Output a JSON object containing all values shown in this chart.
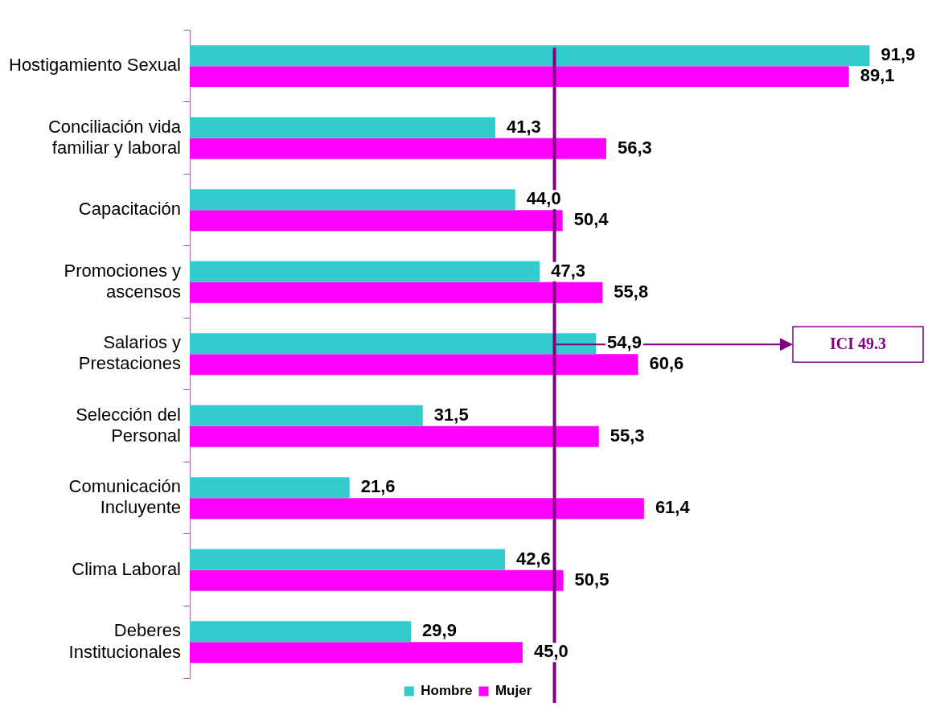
{
  "chart_data": {
    "type": "bar",
    "orientation": "horizontal",
    "categories": [
      "Hostigamiento Sexual",
      "Conciliación vida\nfamiliar y laboral",
      "Capacitación",
      "Promociones y\nascensos",
      "Salarios y\nPrestaciones",
      "Selección del\nPersonal",
      "Comunicación\nIncluyente",
      "Clima Laboral",
      "Deberes\nInstitucionales"
    ],
    "series": [
      {
        "name": "Hombre",
        "color": "#33cccc",
        "values": [
          91.9,
          41.3,
          44.0,
          47.3,
          54.9,
          31.5,
          21.6,
          42.6,
          29.9
        ],
        "value_labels": [
          "91,9",
          "41,3",
          "44,0",
          "47,3",
          "54,9",
          "31,5",
          "21,6",
          "42,6",
          "29,9"
        ]
      },
      {
        "name": "Mujer",
        "color": "#ff00ff",
        "values": [
          89.1,
          56.3,
          50.4,
          55.8,
          60.6,
          55.3,
          61.4,
          50.5,
          45.0
        ],
        "value_labels": [
          "89,1",
          "56,3",
          "50,4",
          "55,8",
          "60,6",
          "55,3",
          "61,4",
          "50,5",
          "45,0"
        ]
      }
    ],
    "ref_lines": [
      {
        "axis": "x",
        "value": 49.3,
        "label": "ICI 49.3",
        "color": "#800080"
      }
    ],
    "legend": "bottom"
  }
}
